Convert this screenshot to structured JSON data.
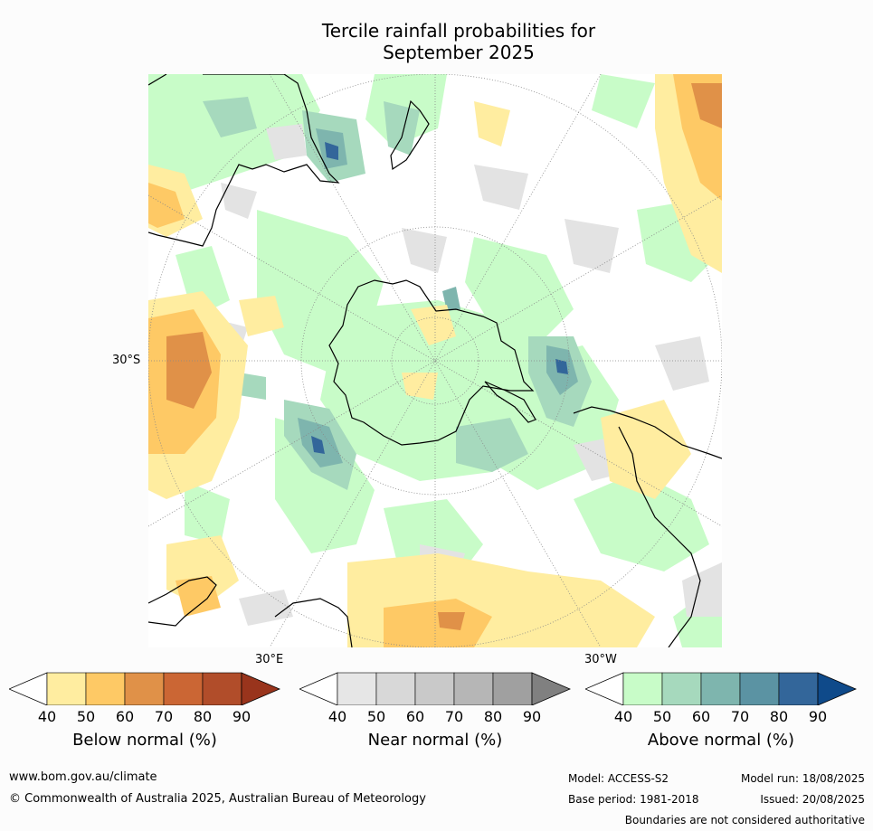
{
  "title_line1": "Tercile rainfall probabilities for",
  "title_line2": "September 2025",
  "map": {
    "lat_labels": [
      "30°S"
    ],
    "lon_labels": [
      "30°E",
      "30°W"
    ]
  },
  "colorbars": [
    {
      "id": "below",
      "label": "Below normal (%)",
      "ticks": [
        "40",
        "50",
        "60",
        "70",
        "80",
        "90"
      ],
      "colors": [
        "#ffffff",
        "#ffeda0",
        "#fec965",
        "#e09148",
        "#cb6634",
        "#b14d2a",
        "#99341c"
      ]
    },
    {
      "id": "near",
      "label": "Near normal (%)",
      "ticks": [
        "40",
        "50",
        "60",
        "70",
        "80",
        "90"
      ],
      "colors": [
        "#ffffff",
        "#e6e6e6",
        "#d8d8d8",
        "#c9c9c9",
        "#b6b6b6",
        "#a0a0a0",
        "#808080"
      ]
    },
    {
      "id": "above",
      "label": "Above normal (%)",
      "ticks": [
        "40",
        "50",
        "60",
        "70",
        "80",
        "90"
      ],
      "colors": [
        "#ffffff",
        "#c8fcc8",
        "#a6d9bd",
        "#7eb5ae",
        "#5b93a3",
        "#33669a",
        "#0f4a8a"
      ]
    }
  ],
  "footer": {
    "url": "www.bom.gov.au/climate",
    "copyright": "© Commonwealth of Australia 2025, Australian Bureau of Meteorology",
    "model": "Model: ACCESS-S2",
    "model_run": "Model run: 18/08/2025",
    "base_period": "Base period: 1981-2018",
    "issued": "Issued: 20/08/2025",
    "disclaimer": "Boundaries are not considered authoritative"
  }
}
